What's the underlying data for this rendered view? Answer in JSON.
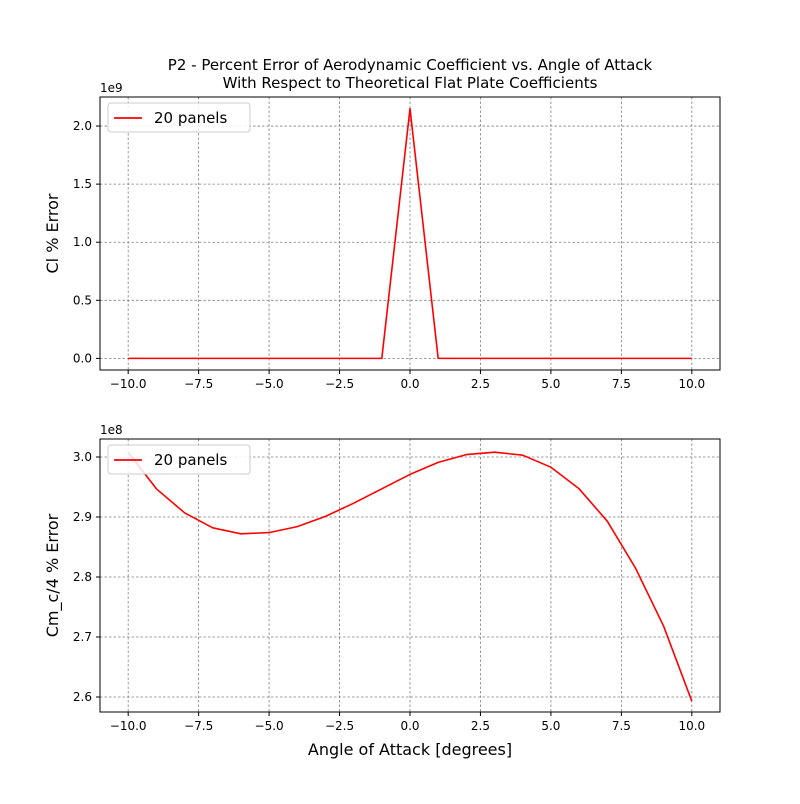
{
  "figure": {
    "title_line1": "P2 - Percent Error of Aerodynamic Coefficient vs. Angle of Attack",
    "title_line2": "With Respect to Theoretical Flat Plate Coefficients"
  },
  "colors": {
    "series": "#ff0000",
    "grid": "#808080",
    "axes": "#000000",
    "legend_border": "#cccccc"
  },
  "chart_data": [
    {
      "type": "line",
      "title": "",
      "xlabel": "",
      "ylabel": "Cl % Error",
      "offset_label": "1e9",
      "multiplier": 1000000000,
      "xlim": [
        -11,
        11
      ],
      "ylim": [
        -0.1,
        2.25
      ],
      "xticks": [
        -10,
        -7.5,
        -5,
        -2.5,
        0,
        2.5,
        5,
        7.5,
        10
      ],
      "xtick_labels": [
        "−10.0",
        "−7.5",
        "−5.0",
        "−2.5",
        "0.0",
        "2.5",
        "5.0",
        "7.5",
        "10.0"
      ],
      "yticks": [
        0,
        0.5,
        1,
        1.5,
        2
      ],
      "ytick_labels": [
        "0.0",
        "0.5",
        "1.0",
        "1.5",
        "2.0"
      ],
      "grid": true,
      "legend_position": "upper-left",
      "series": [
        {
          "name": "20 panels",
          "x": [
            -10,
            -9,
            -8,
            -7,
            -6,
            -5,
            -4,
            -3,
            -2,
            -1,
            0,
            1,
            2,
            3,
            4,
            5,
            6,
            7,
            8,
            9,
            10
          ],
          "y": [
            0,
            0,
            0,
            0,
            0,
            0,
            0,
            0,
            0,
            0,
            2.15,
            0,
            0,
            0,
            0,
            0,
            0,
            0,
            0,
            0,
            0
          ]
        }
      ]
    },
    {
      "type": "line",
      "title": "",
      "xlabel": "Angle of Attack [degrees]",
      "ylabel": "Cm_c/4 % Error",
      "offset_label": "1e8",
      "multiplier": 100000000,
      "xlim": [
        -11,
        11
      ],
      "ylim": [
        2.575,
        3.03
      ],
      "xticks": [
        -10,
        -7.5,
        -5,
        -2.5,
        0,
        2.5,
        5,
        7.5,
        10
      ],
      "xtick_labels": [
        "−10.0",
        "−7.5",
        "−5.0",
        "−2.5",
        "0.0",
        "2.5",
        "5.0",
        "7.5",
        "10.0"
      ],
      "yticks": [
        2.6,
        2.7,
        2.8,
        2.9,
        3.0
      ],
      "ytick_labels": [
        "2.6",
        "2.7",
        "2.8",
        "2.9",
        "3.0"
      ],
      "grid": true,
      "legend_position": "upper-left",
      "series": [
        {
          "name": "20 panels",
          "x": [
            -10,
            -9,
            -8,
            -7,
            -6,
            -5,
            -4,
            -3,
            -2,
            -1,
            0,
            1,
            2,
            3,
            4,
            5,
            6,
            7,
            8,
            9,
            10
          ],
          "y": [
            3.008,
            2.947,
            2.907,
            2.882,
            2.872,
            2.874,
            2.884,
            2.901,
            2.923,
            2.947,
            2.971,
            2.991,
            3.004,
            3.008,
            3.003,
            2.983,
            2.947,
            2.893,
            2.815,
            2.718,
            2.593
          ]
        }
      ]
    }
  ]
}
